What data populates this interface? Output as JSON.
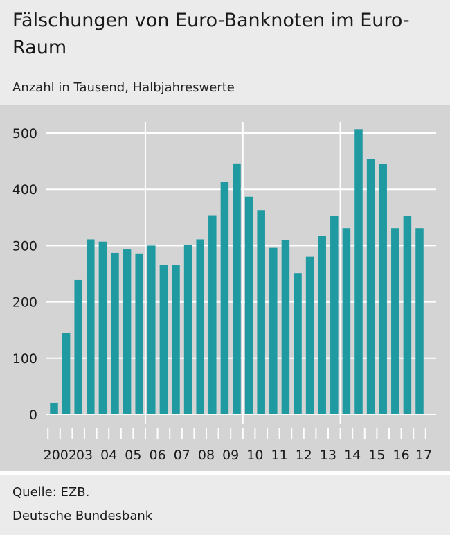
{
  "header": {
    "title": "Fälschungen von Euro-Banknoten im Euro-Raum",
    "subtitle": "Anzahl in Tausend, Halbjahreswerte"
  },
  "footer": {
    "source": "Quelle: EZB.",
    "publisher": "Deutsche Bundesbank"
  },
  "colors": {
    "bar": "#1f9aa1",
    "plot_background": "#d4d4d4",
    "grid": "#ffffff"
  },
  "chart_data": {
    "type": "bar",
    "title": "Fälschungen von Euro-Banknoten im Euro-Raum",
    "subtitle": "Anzahl in Tausend, Halbjahreswerte",
    "xlabel": "",
    "ylabel": "",
    "ylim": [
      0,
      500
    ],
    "yticks": [
      0,
      100,
      200,
      300,
      400,
      500
    ],
    "grid": true,
    "categories": [
      "2002 H1",
      "2002 H2",
      "2003 H1",
      "2003 H2",
      "2004 H1",
      "2004 H2",
      "2005 H1",
      "2005 H2",
      "2006 H1",
      "2006 H2",
      "2007 H1",
      "2007 H2",
      "2008 H1",
      "2008 H2",
      "2009 H1",
      "2009 H2",
      "2010 H1",
      "2010 H2",
      "2011 H1",
      "2011 H2",
      "2012 H1",
      "2012 H2",
      "2013 H1",
      "2013 H2",
      "2014 H1",
      "2014 H2",
      "2015 H1",
      "2015 H2",
      "2016 H1",
      "2016 H2",
      "2017 H1"
    ],
    "x_tick_labels": [
      "2002",
      "03",
      "04",
      "05",
      "06",
      "07",
      "08",
      "09",
      "10",
      "11",
      "12",
      "13",
      "14",
      "15",
      "16",
      "17"
    ],
    "series": [
      {
        "values": [
          21,
          145,
          239,
          311,
          307,
          287,
          293,
          286,
          300,
          265,
          265,
          301,
          311,
          354,
          413,
          446,
          387,
          363,
          296,
          310,
          251,
          280,
          317,
          353,
          331,
          507,
          454,
          445,
          331,
          353,
          331
        ]
      }
    ]
  }
}
